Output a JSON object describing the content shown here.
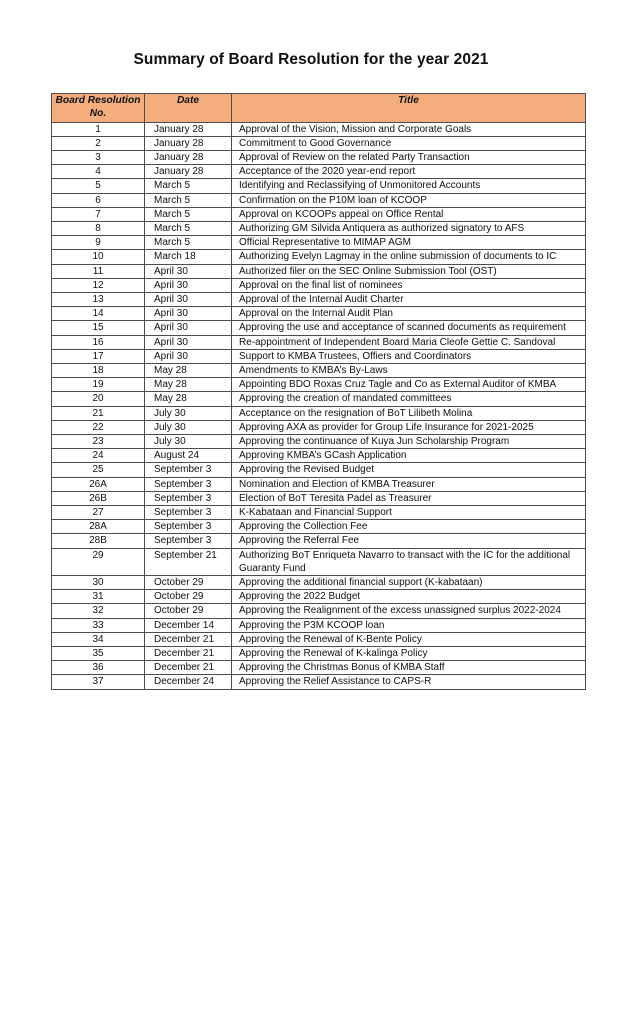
{
  "page": {
    "title": "Summary of Board Resolution for the year 2021"
  },
  "colors": {
    "header_bg": "#F4AE7E",
    "border": "#4d4d4d"
  },
  "table": {
    "headers": {
      "no": {
        "line1": "Board Resolution",
        "line2": "No."
      },
      "date": "Date",
      "title": "Title"
    },
    "rows": [
      {
        "no": "1",
        "date": "January 28",
        "title": "Approval of the Vision, Mission and Corporate Goals"
      },
      {
        "no": "2",
        "date": "January 28",
        "title": "Commitment to Good Governance"
      },
      {
        "no": "3",
        "date": "January 28",
        "title": "Approval of Review on the related Party Transaction"
      },
      {
        "no": "4",
        "date": "January 28",
        "title": "Acceptance of the 2020 year-end report"
      },
      {
        "no": "5",
        "date": "March 5",
        "title": "Identifying and Reclassifying of Unmonitored Accounts"
      },
      {
        "no": "6",
        "date": "March 5",
        "title": "Confirmation on the P10M loan of KCOOP"
      },
      {
        "no": "7",
        "date": "March 5",
        "title": "Approval on KCOOPs appeal on Office Rental"
      },
      {
        "no": "8",
        "date": "March 5",
        "title": "Authorizing GM Silvida Antiquera as authorized signatory to AFS"
      },
      {
        "no": "9",
        "date": "March 5",
        "title": "Official Representative to MIMAP AGM"
      },
      {
        "no": "10",
        "date": "March 18",
        "title": "Authorizing Evelyn Lagmay in the online submission of documents to IC"
      },
      {
        "no": "11",
        "date": "April 30",
        "title": "Authorized filer on the SEC Online Submission Tool (OST)"
      },
      {
        "no": "12",
        "date": "April 30",
        "title": "Approval on the final list of nominees"
      },
      {
        "no": "13",
        "date": "April 30",
        "title": "Approval of the Internal Audit Charter"
      },
      {
        "no": "14",
        "date": "April 30",
        "title": "Approval on the Internal Audit Plan"
      },
      {
        "no": "15",
        "date": "April 30",
        "title": "Approving the use and acceptance of scanned documents as requirement"
      },
      {
        "no": "16",
        "date": "April 30",
        "title": "Re-appointment of Independent Board Maria Cleofe Gettie C. Sandoval"
      },
      {
        "no": "17",
        "date": "April 30",
        "title": "Support to KMBA Trustees, Offiers and Coordinators"
      },
      {
        "no": "18",
        "date": "May 28",
        "title": "Amendments to KMBA’s By-Laws"
      },
      {
        "no": "19",
        "date": "May 28",
        "title": "Appointing BDO Roxas Cruz Tagle and Co as External Auditor of KMBA"
      },
      {
        "no": "20",
        "date": "May 28",
        "title": "Approving the creation of mandated committees"
      },
      {
        "no": "21",
        "date": "July 30",
        "title": "Acceptance on the resignation of BoT Lilibeth Molina"
      },
      {
        "no": "22",
        "date": "July 30",
        "title": "Approving AXA as provider for Group Life Insurance for 2021-2025"
      },
      {
        "no": "23",
        "date": "July 30",
        "title": "Approving the continuance of Kuya Jun Scholarship Program"
      },
      {
        "no": "24",
        "date": "August 24",
        "title": "Approving KMBA’s GCash Application"
      },
      {
        "no": "25",
        "date": "September 3",
        "title": "Approving the Revised Budget"
      },
      {
        "no": "26A",
        "date": "September 3",
        "title": "Nomination and Election of KMBA Treasurer"
      },
      {
        "no": "26B",
        "date": "September 3",
        "title": "Election of BoT Teresita Padel as Treasurer"
      },
      {
        "no": "27",
        "date": "September 3",
        "title": "K-Kabataan and Financial Support"
      },
      {
        "no": "28A",
        "date": "September 3",
        "title": "Approving the Collection Fee"
      },
      {
        "no": "28B",
        "date": "September 3",
        "title": "Approving the Referral Fee"
      },
      {
        "no": "29",
        "date": "September 21",
        "title": "Authorizing BoT Enriqueta Navarro to transact with the IC for the additional Guaranty Fund"
      },
      {
        "no": "30",
        "date": "October 29",
        "title": "Approving the additional financial support (K-kabataan)"
      },
      {
        "no": "31",
        "date": "October 29",
        "title": "Approving the 2022 Budget"
      },
      {
        "no": "32",
        "date": "October 29",
        "title": "Approving the Realignment of the excess unassigned surplus 2022-2024"
      },
      {
        "no": "33",
        "date": "December 14",
        "title": "Approving the P3M KCOOP loan"
      },
      {
        "no": "34",
        "date": "December 21",
        "title": "Approving the Renewal of K-Bente Policy"
      },
      {
        "no": "35",
        "date": "December 21",
        "title": "Approving the Renewal of K-kalinga Policy"
      },
      {
        "no": "36",
        "date": "December 21",
        "title": "Approving the Christmas Bonus of KMBA Staff"
      },
      {
        "no": "37",
        "date": "December 24",
        "title": "Approving the Relief Assistance to CAPS-R"
      }
    ]
  }
}
